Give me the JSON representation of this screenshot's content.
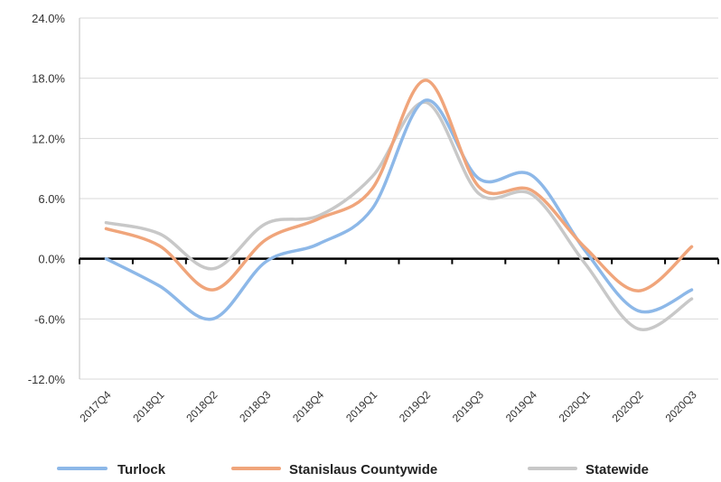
{
  "chart_data": {
    "type": "line",
    "title": "",
    "xlabel": "",
    "ylabel": "",
    "categories": [
      "2017Q4",
      "2018Q1",
      "2018Q2",
      "2018Q3",
      "2018Q4",
      "2019Q1",
      "2019Q2",
      "2019Q3",
      "2019Q4",
      "2020Q1",
      "2020Q2",
      "2020Q3"
    ],
    "ylim": [
      -12,
      24
    ],
    "yticks": [
      -12,
      -6,
      0,
      6,
      12,
      18,
      24
    ],
    "ytick_labels": [
      "-12.0%",
      "-6.0%",
      "0.0%",
      "6.0%",
      "12.0%",
      "18.0%",
      "24.0%"
    ],
    "grid": true,
    "legend_position": "bottom",
    "series": [
      {
        "name": "Turlock",
        "color": "#8db8e8",
        "values": [
          0.0,
          -2.7,
          -6.0,
          -0.3,
          1.5,
          5.0,
          15.8,
          8.0,
          8.3,
          0.8,
          -5.2,
          -3.1
        ]
      },
      {
        "name": "Stanislaus Countywide",
        "color": "#f0a57b",
        "values": [
          3.0,
          1.3,
          -3.1,
          1.9,
          4.0,
          7.0,
          17.8,
          7.2,
          6.8,
          1.1,
          -3.2,
          1.2
        ]
      },
      {
        "name": "Statewide",
        "color": "#c8c8c8",
        "values": [
          3.6,
          2.5,
          -1.0,
          3.5,
          4.3,
          8.2,
          15.6,
          6.5,
          6.4,
          -0.5,
          -7.0,
          -4.0
        ]
      }
    ]
  }
}
